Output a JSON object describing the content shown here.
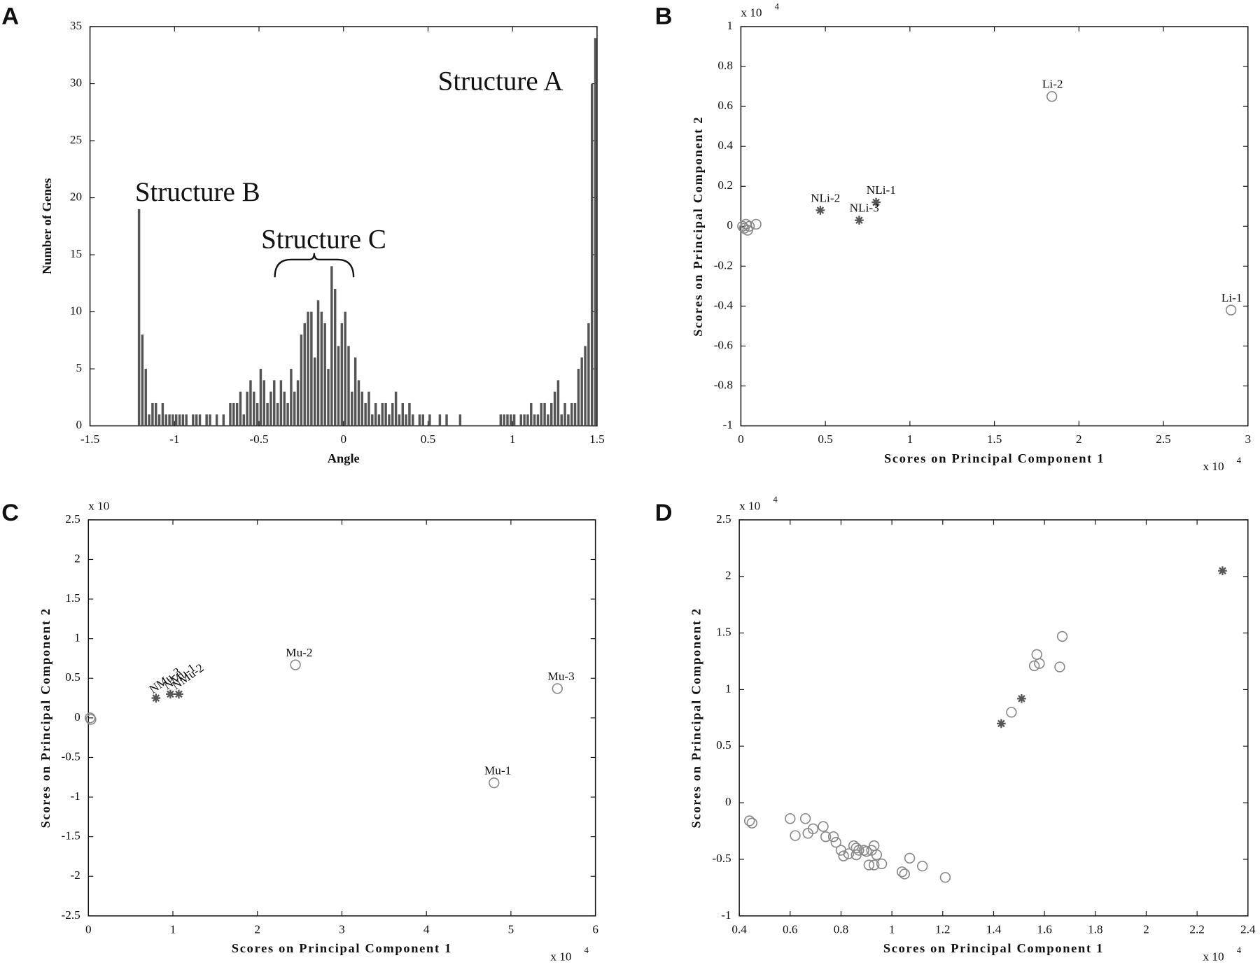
{
  "chart_data": [
    {
      "type": "histogram",
      "panel_label": "A",
      "xlabel": "Angle",
      "ylabel": "Number of Genes",
      "color": "#555555",
      "xlim": [
        -1.5,
        1.5
      ],
      "xticks": [
        -1.5,
        -1,
        -0.5,
        0,
        0.5,
        1,
        1.5
      ],
      "ylim": [
        0,
        35
      ],
      "yticks": [
        0,
        5,
        10,
        15,
        20,
        25,
        30,
        35
      ],
      "annotations": [
        "Structure A",
        "Structure B",
        "Structure C"
      ],
      "bins": [
        -1.22,
        -1.2,
        -1.18,
        -1.16,
        -1.14,
        -1.12,
        -1.1,
        -1.08,
        -1.06,
        -1.04,
        -1.02,
        -1,
        -0.98,
        -0.96,
        -0.94,
        -0.92,
        -0.9,
        -0.88,
        -0.86,
        -0.84,
        -0.82,
        -0.8,
        -0.78,
        -0.76,
        -0.74,
        -0.72,
        -0.7,
        -0.68,
        -0.66,
        -0.64,
        -0.62,
        -0.6,
        -0.58,
        -0.56,
        -0.54,
        -0.52,
        -0.5,
        -0.48,
        -0.46,
        -0.44,
        -0.42,
        -0.4,
        -0.38,
        -0.36,
        -0.34,
        -0.32,
        -0.3,
        -0.28,
        -0.26,
        -0.24,
        -0.22,
        -0.2,
        -0.18,
        -0.16,
        -0.14,
        -0.12,
        -0.1,
        -0.08,
        -0.06,
        -0.04,
        -0.02,
        0,
        0.02,
        0.04,
        0.06,
        0.08,
        0.1,
        0.12,
        0.14,
        0.16,
        0.18,
        0.2,
        0.22,
        0.24,
        0.26,
        0.28,
        0.3,
        0.32,
        0.34,
        0.36,
        0.38,
        0.4,
        0.42,
        0.44,
        0.46,
        0.48,
        0.5,
        0.52,
        0.54,
        0.56,
        0.58,
        0.6,
        0.62,
        0.64,
        0.66,
        0.68,
        0.7,
        0.72,
        0.74,
        0.76,
        0.78,
        0.8,
        0.82,
        0.84,
        0.86,
        0.88,
        0.9,
        0.92,
        0.94,
        0.96,
        0.98,
        1,
        1.02,
        1.04,
        1.06,
        1.08,
        1.1,
        1.12,
        1.14,
        1.16,
        1.18,
        1.2,
        1.22,
        1.24,
        1.26,
        1.28,
        1.3,
        1.32,
        1.34,
        1.36,
        1.38,
        1.4,
        1.42,
        1.44,
        1.46,
        1.48,
        1.5
      ],
      "values": [
        19,
        8,
        5,
        1,
        2,
        2,
        1,
        2,
        1,
        1,
        1,
        1,
        1,
        1,
        1,
        0,
        1,
        1,
        1,
        0,
        1,
        1,
        0,
        1,
        0,
        1,
        0,
        2,
        2,
        2,
        3,
        1,
        3,
        4,
        3,
        2,
        5,
        4,
        2,
        3,
        4,
        2,
        4,
        3,
        2,
        5,
        3,
        4,
        8,
        9,
        10,
        10,
        6,
        11,
        10,
        9,
        5,
        14,
        12,
        7,
        9,
        10,
        7,
        3,
        6,
        4,
        3,
        2,
        3,
        1,
        2,
        1,
        2,
        2,
        1,
        2,
        3,
        1,
        2,
        1,
        2,
        1,
        0,
        1,
        1,
        0,
        1,
        0,
        0,
        1,
        0,
        1,
        0,
        0,
        0,
        1,
        0,
        0,
        0,
        0,
        0,
        0,
        0,
        0,
        0,
        0,
        0,
        1,
        1,
        1,
        1,
        1,
        0,
        1,
        1,
        1,
        2,
        1,
        1,
        2,
        2,
        1,
        2,
        3,
        4,
        1,
        2,
        1,
        2,
        2,
        5,
        6,
        7,
        9,
        30,
        34
      ]
    },
    {
      "type": "scatter",
      "panel_label": "B",
      "xlabel": "Scores on Principal Component 1",
      "ylabel": "Scores on Principal Component 2",
      "x_multiplier": {
        "base": "x 10",
        "exponent": "4"
      },
      "y_multiplier": {
        "base": "x 10",
        "exponent": "4"
      },
      "xlim": [
        0,
        3
      ],
      "xticks": [
        0,
        0.5,
        1,
        1.5,
        2,
        2.5,
        3
      ],
      "ylim": [
        -1,
        1
      ],
      "yticks": [
        -1,
        -0.8,
        -0.6,
        -0.4,
        -0.2,
        0,
        0.2,
        0.4,
        0.6,
        0.8,
        1
      ],
      "series": [
        {
          "marker": "circle",
          "color": "#888888",
          "x": [
            0.01,
            0.02,
            0.03,
            0.04,
            0.05,
            0.09,
            1.84,
            2.9
          ],
          "y": [
            0,
            -0.01,
            0.01,
            -0.02,
            0,
            0.01,
            0.65,
            -0.42
          ],
          "labels": [
            null,
            null,
            null,
            null,
            null,
            null,
            "Li-2",
            "Li-1"
          ]
        },
        {
          "marker": "asterisk",
          "color": "#555555",
          "x": [
            0.47,
            0.8,
            0.7
          ],
          "y": [
            0.08,
            0.12,
            0.03
          ],
          "labels": [
            "NLi-2",
            "NLi-1",
            "NLi-3"
          ]
        }
      ]
    },
    {
      "type": "scatter",
      "panel_label": "C",
      "xlabel": "Scores on Principal Component 1",
      "ylabel": "Scores on Principal Component 2",
      "x_multiplier": {
        "base": "x 10",
        "exponent": "4"
      },
      "y_multiplier": {
        "base": "x 10"
      },
      "xlim": [
        0,
        6
      ],
      "xticks": [
        0,
        1,
        2,
        3,
        4,
        5,
        6
      ],
      "ylim": [
        -2.5,
        2.5
      ],
      "yticks": [
        -2.5,
        -2,
        -1.5,
        -1,
        -0.5,
        0,
        0.5,
        1,
        1.5,
        2,
        2.5
      ],
      "series": [
        {
          "marker": "circle",
          "color": "#888888",
          "x": [
            0.02,
            0.03,
            2.45,
            5.55,
            4.8
          ],
          "y": [
            0,
            -0.02,
            0.67,
            0.37,
            -0.82
          ],
          "labels": [
            null,
            null,
            "Mu-2",
            "Mu-3",
            "Mu-1"
          ]
        },
        {
          "marker": "asterisk",
          "color": "#555555",
          "x": [
            0.8,
            0.97,
            1.07
          ],
          "y": [
            0.25,
            0.3,
            0.3
          ],
          "labels": [
            "NMu-3",
            "NMu-1",
            "NMu-2"
          ]
        }
      ]
    },
    {
      "type": "scatter",
      "panel_label": "D",
      "xlabel": "Scores on Principal Component 1",
      "ylabel": "Scores on Principal Component 2",
      "x_multiplier": {
        "base": "x 10",
        "exponent": "4"
      },
      "y_multiplier": {
        "base": "x 10",
        "exponent": "4"
      },
      "xlim": [
        0.4,
        2.4
      ],
      "xticks": [
        0.4,
        0.6,
        0.8,
        1,
        1.2,
        1.4,
        1.6,
        1.8,
        2,
        2.2,
        2.4
      ],
      "ylim": [
        -1,
        2.5
      ],
      "yticks": [
        -1,
        -0.5,
        0,
        0.5,
        1,
        1.5,
        2,
        2.5
      ],
      "series": [
        {
          "marker": "circle",
          "color": "#888888",
          "x": [
            0.44,
            0.45,
            0.6,
            0.62,
            0.66,
            0.67,
            0.69,
            0.73,
            0.74,
            0.77,
            0.78,
            0.8,
            0.81,
            0.83,
            0.85,
            0.86,
            0.86,
            0.87,
            0.89,
            0.9,
            0.91,
            0.92,
            0.93,
            0.93,
            0.94,
            0.96,
            1.07,
            1.04,
            1.05,
            1.12,
            1.21,
            1.47,
            1.56,
            1.57,
            1.58,
            1.66,
            1.67
          ],
          "y": [
            -0.16,
            -0.18,
            -0.14,
            -0.29,
            -0.14,
            -0.27,
            -0.23,
            -0.21,
            -0.3,
            -0.3,
            -0.35,
            -0.42,
            -0.47,
            -0.45,
            -0.38,
            -0.4,
            -0.46,
            -0.42,
            -0.42,
            -0.43,
            -0.55,
            -0.42,
            -0.38,
            -0.55,
            -0.46,
            -0.54,
            -0.49,
            -0.61,
            -0.63,
            -0.56,
            -0.66,
            0.8,
            1.21,
            1.31,
            1.23,
            1.2,
            1.47
          ]
        },
        {
          "marker": "asterisk",
          "color": "#555555",
          "x": [
            2.3,
            1.43,
            1.51
          ],
          "y": [
            2.05,
            0.7,
            0.92
          ]
        }
      ]
    }
  ]
}
